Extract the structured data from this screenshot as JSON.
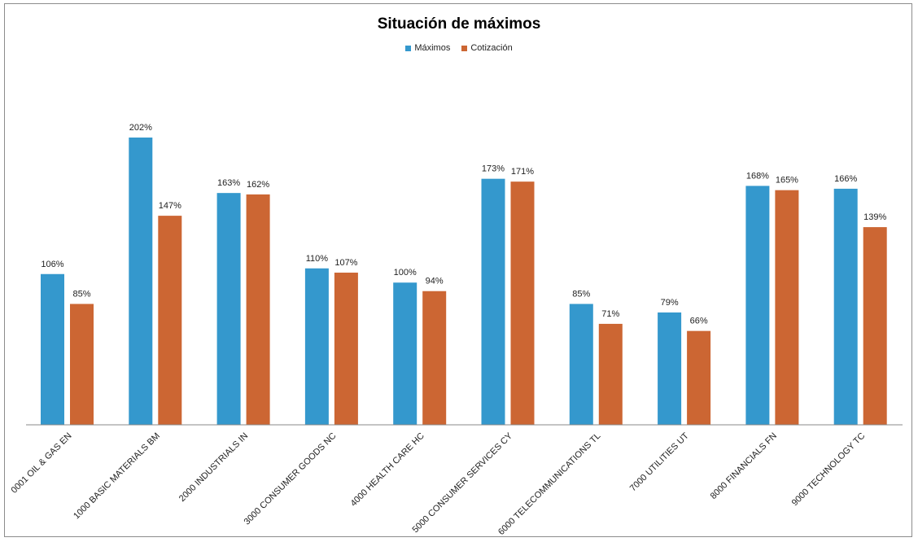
{
  "colors": {
    "maximos": "#3498cd",
    "cotizacion": "#cc6633",
    "axis": "#888888"
  },
  "chart_data": {
    "type": "bar",
    "title": "Situación de máximos",
    "legend_position": "top-center",
    "grid": false,
    "ylim": [
      0,
      210
    ],
    "categories": [
      "0001 OIL & GAS EN",
      "1000 BASIC MATERIALS BM",
      "2000 INDUSTRIALS IN",
      "3000 CONSUMER GOODS NC",
      "4000 HEALTH CARE  HC",
      "5000 CONSUMER SERVICES  CY",
      "6000 TELECOMMUNICATIONS TL",
      "7000 UTILITIES UT",
      "8000 FINANCIALS FN",
      "9000 TECHNOLOGY TC"
    ],
    "series": [
      {
        "name": "Máximos",
        "values": [
          106,
          202,
          163,
          110,
          100,
          173,
          85,
          79,
          168,
          166
        ],
        "labels": [
          "106%",
          "202%",
          "163%",
          "110%",
          "100%",
          "173%",
          "85%",
          "79%",
          "168%",
          "166%"
        ]
      },
      {
        "name": "Cotización",
        "values": [
          85,
          147,
          162,
          107,
          94,
          171,
          71,
          66,
          165,
          139
        ],
        "labels": [
          "85%",
          "147%",
          "162%",
          "107%",
          "94%",
          "171%",
          "71%",
          "66%",
          "165%",
          "139%"
        ]
      }
    ]
  }
}
